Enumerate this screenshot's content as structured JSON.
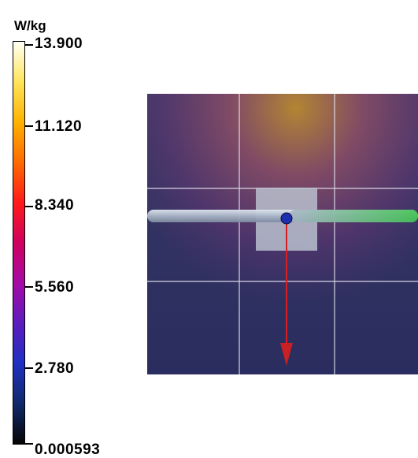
{
  "colorbar": {
    "unit": "W/kg",
    "ticks": [
      {
        "label": "13.900"
      },
      {
        "label": "11.120"
      },
      {
        "label": "8.340"
      },
      {
        "label": "5.560"
      },
      {
        "label": "2.780"
      },
      {
        "label": "0.000593"
      }
    ],
    "gradient_colors": [
      "#fffff5",
      "#ffe45a",
      "#ffb200",
      "#ff6a00",
      "#ff1a1a",
      "#d0005e",
      "#a60aa6",
      "#5c1cbe",
      "#1f2fc2",
      "#102a6a",
      "#050505"
    ]
  }
}
